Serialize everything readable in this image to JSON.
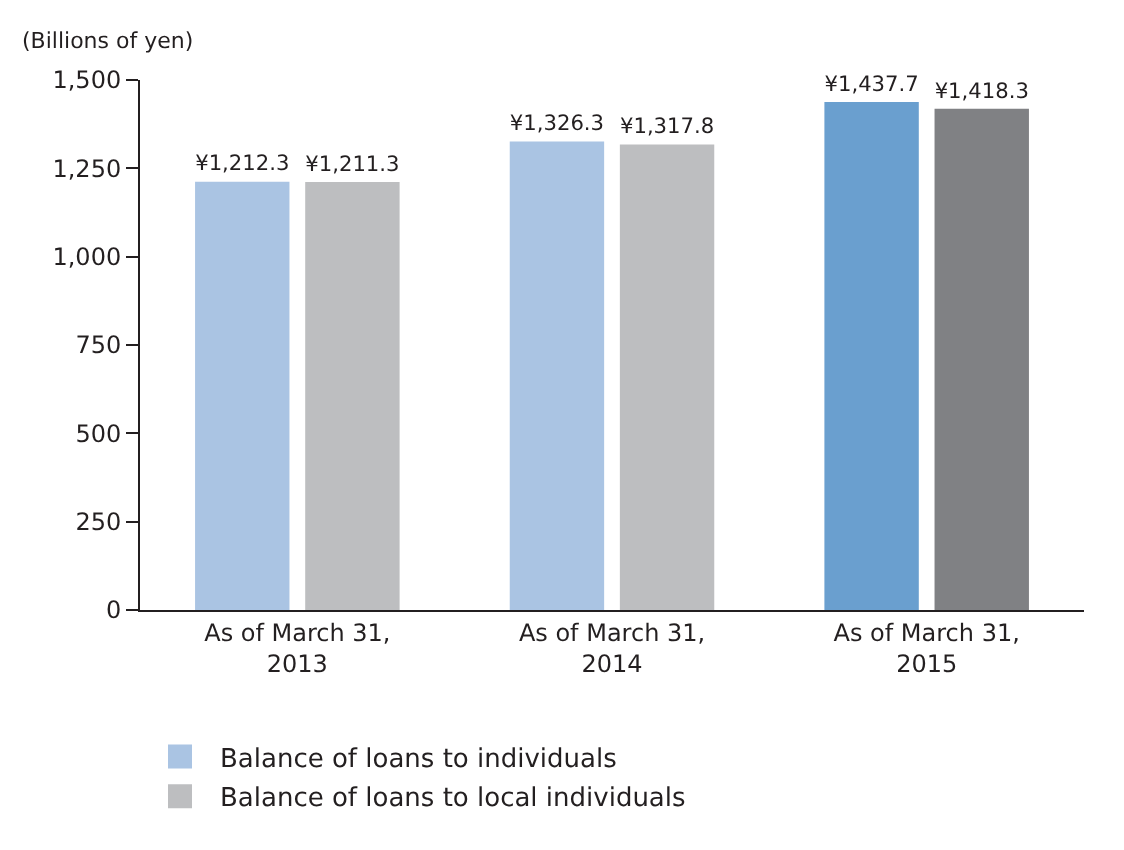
{
  "chart_data": {
    "type": "bar",
    "ylabel": "(Billions of yen)",
    "categories": [
      "As of March 31,\n2013",
      "As of March 31,\n2014",
      "As of March 31,\n2015"
    ],
    "series": [
      {
        "name": "Balance of loans to individuals",
        "colors": [
          "#aac4e3",
          "#aac4e3",
          "#6a9fcf"
        ],
        "values": [
          1212.3,
          1326.3,
          1437.7
        ],
        "value_labels": [
          "¥1,212.3",
          "¥1,326.3",
          "¥1,437.7"
        ]
      },
      {
        "name": "Balance of loans to local individuals",
        "colors": [
          "#bdbec0",
          "#bdbec0",
          "#808184"
        ],
        "values": [
          1211.3,
          1317.8,
          1418.3
        ],
        "value_labels": [
          "¥1,211.3",
          "¥1,317.8",
          "¥1,418.3"
        ]
      }
    ],
    "ylim": [
      0,
      1500
    ],
    "yticks": [
      0,
      250,
      500,
      750,
      {
        "value": 1000,
        "label": "1,000"
      },
      {
        "value": 1250,
        "label": "1,250"
      },
      {
        "value": 1500,
        "label": "1,500"
      }
    ],
    "legend": "bottom"
  }
}
